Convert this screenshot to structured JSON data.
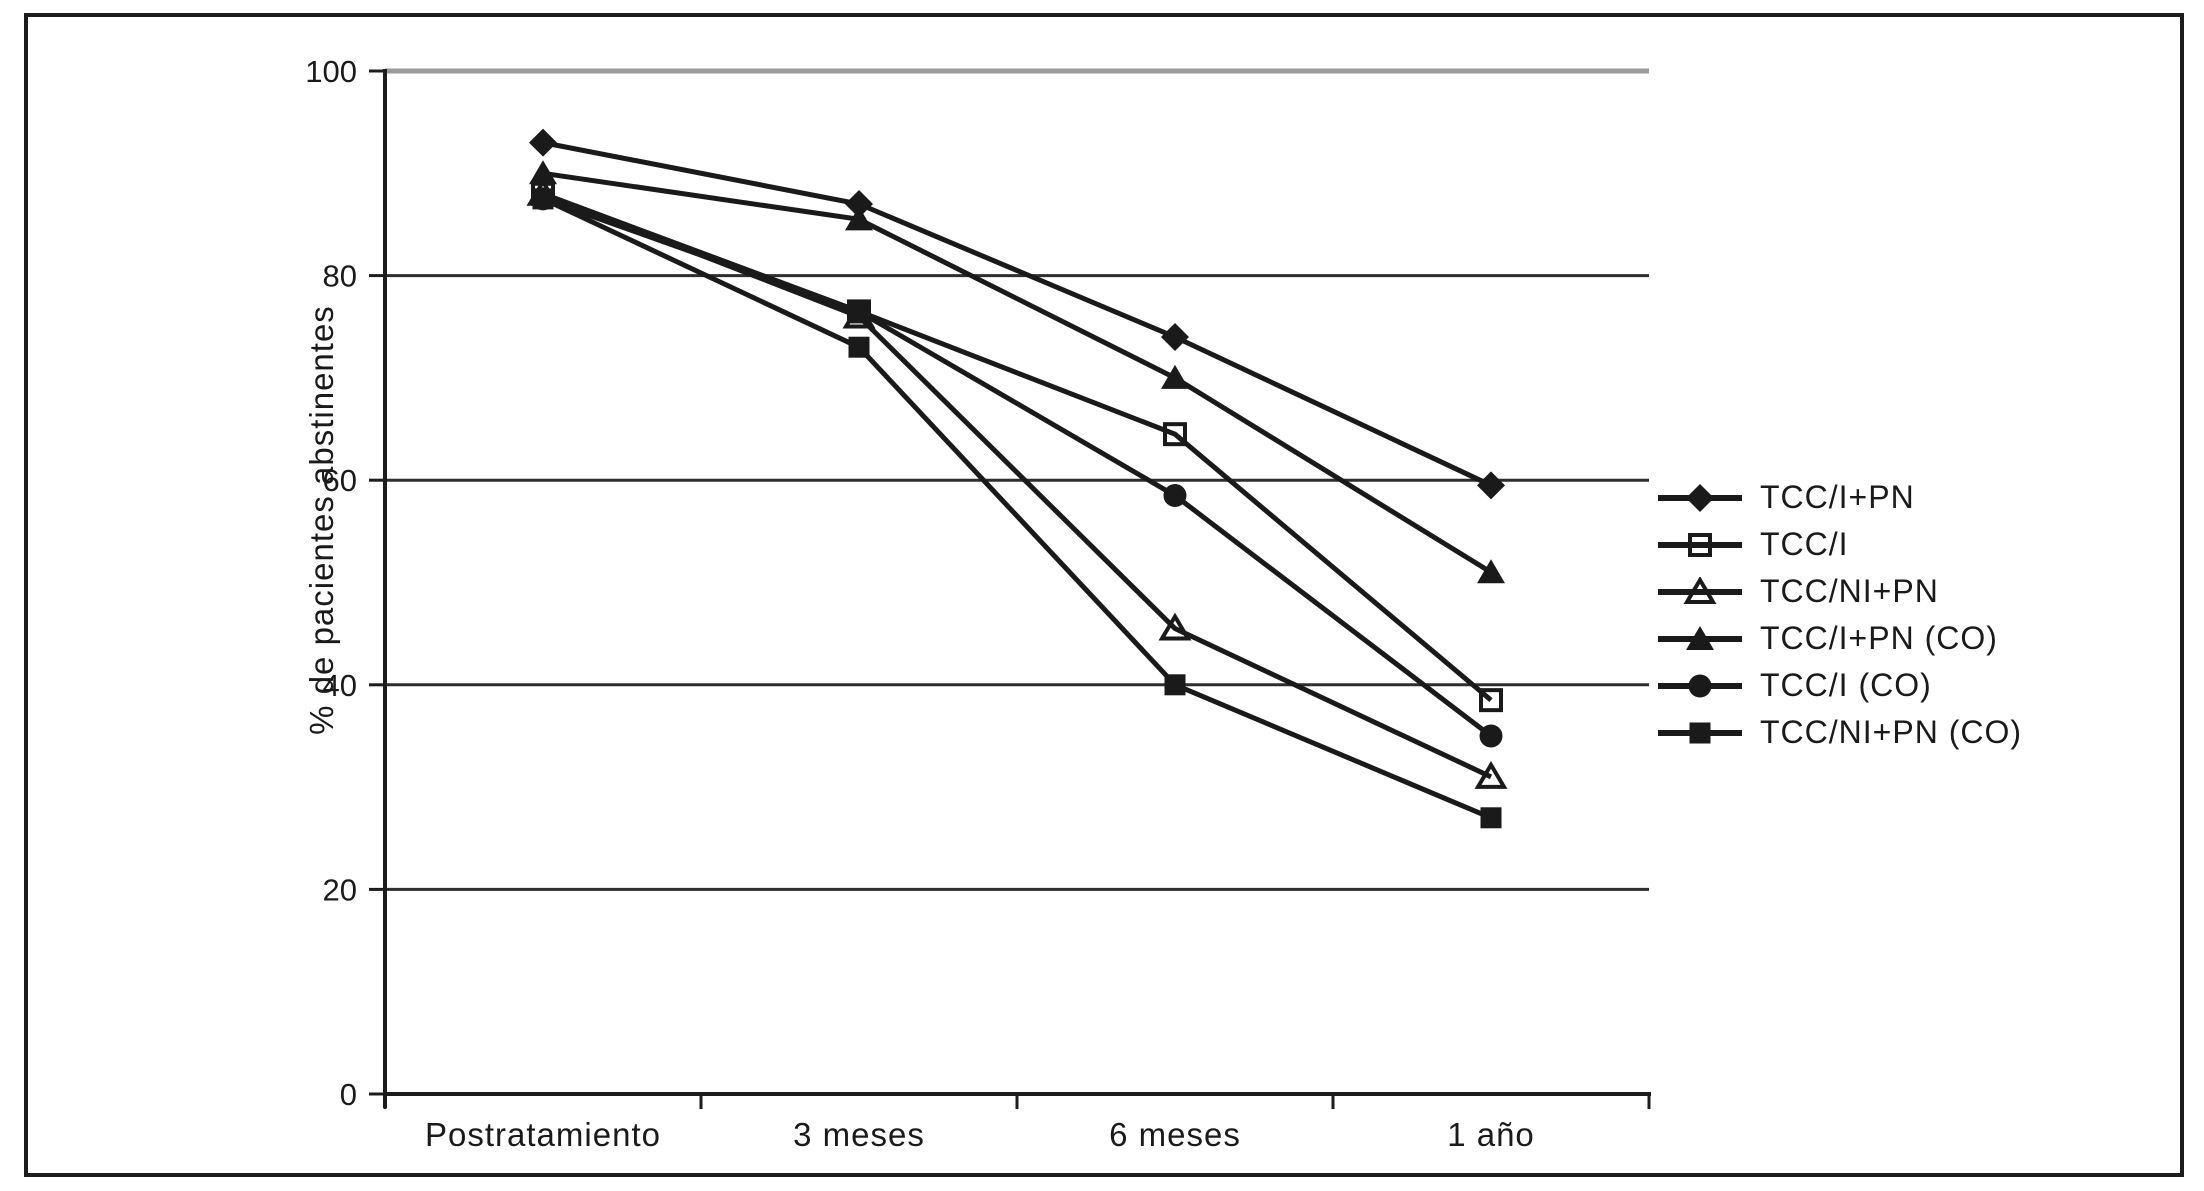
{
  "figure": {
    "ylabel": "% de pacientes abstinentes"
  },
  "chart_data": {
    "type": "line",
    "title": "",
    "xlabel": "",
    "ylabel": "% de pacientes abstinentes",
    "categories": [
      "Postratamiento",
      "3 meses",
      "6 meses",
      "1 año"
    ],
    "yticks": [
      0,
      20,
      40,
      60,
      80,
      100
    ],
    "ylim": [
      0,
      100
    ],
    "grid": true,
    "legend_position": "right",
    "series": [
      {
        "name": "TCC/I+PN",
        "marker": "diamond-filled",
        "values": [
          93,
          87,
          74,
          59.5
        ]
      },
      {
        "name": "TCC/I",
        "marker": "square-open",
        "values": [
          88,
          76.5,
          64.5,
          38.5
        ]
      },
      {
        "name": "TCC/NI+PN",
        "marker": "triangle-open",
        "values": [
          88,
          76,
          45.5,
          31
        ]
      },
      {
        "name": "TCC/I+PN (CO)",
        "marker": "triangle-filled",
        "values": [
          90,
          85.5,
          70,
          51
        ]
      },
      {
        "name": "TCC/I (CO)",
        "marker": "circle-filled",
        "values": [
          87.5,
          76.5,
          58.5,
          35
        ]
      },
      {
        "name": "TCC/NI+PN (CO)",
        "marker": "square-filled",
        "values": [
          87.5,
          73,
          40,
          27
        ]
      }
    ],
    "colors": {
      "line": "#1a1a1a",
      "gridline": "#2e2e2e",
      "top_gridline": "#9a9a9a",
      "axis": "#1c1c1c"
    }
  }
}
